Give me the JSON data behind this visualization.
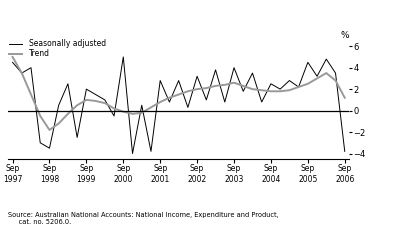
{
  "ylabel": "%",
  "source_text": "Source: Australian National Accounts: National Income, Expenditure and Product,\n     cat. no. 5206.0.",
  "ylim": [
    -4.5,
    6.5
  ],
  "yticks": [
    -4,
    -2,
    0,
    2,
    4,
    6
  ],
  "sa_color": "#000000",
  "trend_color": "#999999",
  "legend_sa": "Seasonally adjusted",
  "legend_trend": "Trend",
  "xtick_indices": [
    0,
    4,
    8,
    12,
    16,
    20,
    24,
    28,
    32,
    36
  ],
  "xtick_labels": [
    "Sep\n1997",
    "Sep\n1998",
    "Sep\n1999",
    "Sep\n2000",
    "Sep\n2001",
    "Sep\n2002",
    "Sep\n2003",
    "Sep\n2004",
    "Sep\n2005",
    "Sep\n2006"
  ],
  "sa_values": [
    4.5,
    3.5,
    4.0,
    -3.0,
    -3.5,
    0.5,
    2.5,
    -2.5,
    2.0,
    1.5,
    1.0,
    -0.5,
    5.0,
    -4.0,
    0.5,
    -3.8,
    2.8,
    0.8,
    2.8,
    0.3,
    3.2,
    1.0,
    3.8,
    0.8,
    4.0,
    1.8,
    3.5,
    0.8,
    2.5,
    2.0,
    2.8,
    2.2,
    4.5,
    3.2,
    4.8,
    3.5,
    -3.8
  ],
  "trend_values": [
    5.0,
    3.5,
    1.5,
    -0.5,
    -1.8,
    -1.2,
    -0.3,
    0.5,
    1.0,
    0.9,
    0.7,
    0.2,
    -0.1,
    -0.3,
    -0.2,
    0.3,
    0.8,
    1.2,
    1.5,
    1.8,
    2.0,
    2.1,
    2.3,
    2.4,
    2.6,
    2.3,
    2.0,
    1.9,
    1.8,
    1.8,
    1.9,
    2.2,
    2.5,
    3.0,
    3.5,
    2.8,
    1.2
  ]
}
